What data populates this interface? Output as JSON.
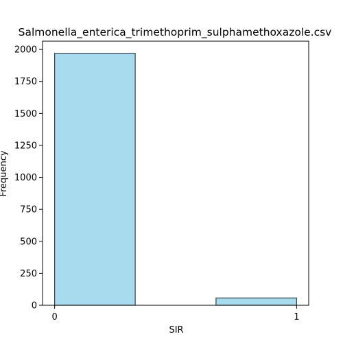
{
  "chart_data": {
    "type": "bar",
    "title": "Salmonella_enterica_trimethoprim_sulphamethoxazole.csv",
    "xlabel": "SIR",
    "ylabel": "Frequency",
    "x_ticks": [
      "0",
      "1"
    ],
    "y_ticks": [
      "0",
      "250",
      "500",
      "750",
      "1000",
      "1250",
      "1500",
      "1750",
      "2000"
    ],
    "ylim": [
      0,
      2065
    ],
    "xlim": [
      -0.05,
      1.05
    ],
    "bars": [
      {
        "left": 0.0,
        "right": 0.333,
        "value": 1970
      },
      {
        "left": 0.667,
        "right": 1.0,
        "value": 57
      }
    ],
    "bar_color": "#a9dbef",
    "edge_color": "#30404a",
    "grid": false
  }
}
